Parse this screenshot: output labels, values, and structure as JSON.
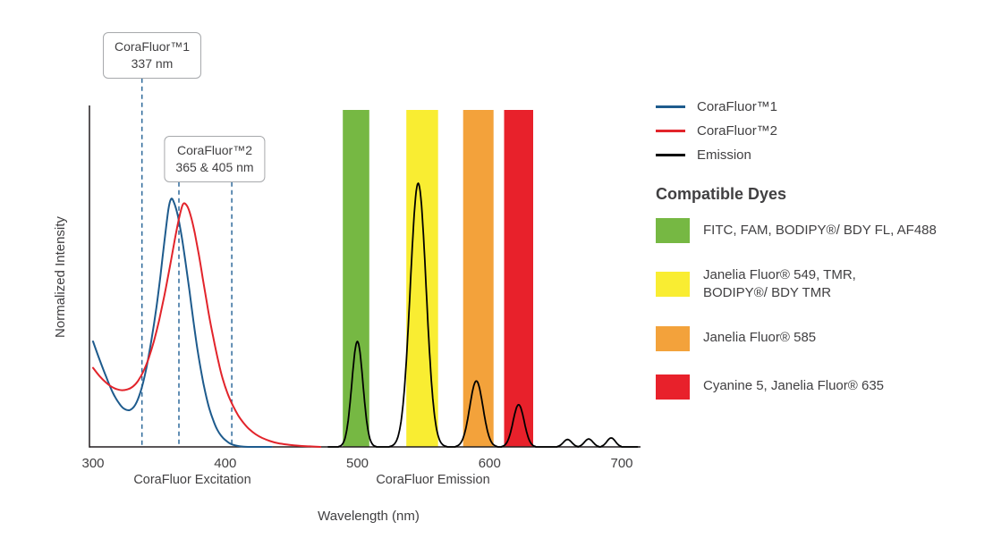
{
  "chart_data": {
    "type": "line",
    "xlabel": "Wavelength (nm)",
    "ylabel": "Normalized Intensity",
    "xlim": [
      300,
      712
    ],
    "ylim": [
      0,
      1.3
    ],
    "grid": false,
    "legend_position": "right",
    "x_ticks": [
      300,
      400,
      500,
      600,
      700
    ],
    "axis_section_labels": [
      {
        "text": "CoraFluor Excitation"
      },
      {
        "text": "CoraFluor Emission"
      }
    ],
    "colors": {
      "axis": "#231f20",
      "callout_line": "#2f6a9b"
    },
    "callouts": [
      {
        "title": "CoraFluor™1",
        "subtitle": "337 nm",
        "lines_nm": [
          337
        ]
      },
      {
        "title": "CoraFluor™2",
        "subtitle": "365 & 405 nm",
        "lines_nm": [
          365,
          405
        ]
      }
    ],
    "dye_bands": [
      {
        "dye_group": "FITC, FAM, BODIPY®/ BDY FL, AF488",
        "color": "#76b843",
        "from_nm": 489,
        "to_nm": 509
      },
      {
        "dye_group": "Janelia Fluor® 549, TMR, BODIPY®/ BDY TMR",
        "color": "#f9ed32",
        "from_nm": 537,
        "to_nm": 561
      },
      {
        "dye_group": "Janelia Fluor® 585",
        "color": "#f3a23b",
        "from_nm": 580,
        "to_nm": 603
      },
      {
        "dye_group": "Cyanine 5, Janelia Fluor® 635",
        "color": "#e8212b",
        "from_nm": 611,
        "to_nm": 633
      }
    ],
    "series": [
      {
        "name": "CoraFluor™1",
        "kind": "excitation",
        "color": "#1e5b8d",
        "points": [
          [
            300,
            0.4
          ],
          [
            305,
            0.33
          ],
          [
            310,
            0.265
          ],
          [
            315,
            0.205
          ],
          [
            320,
            0.163
          ],
          [
            324,
            0.143
          ],
          [
            328,
            0.14
          ],
          [
            332,
            0.16
          ],
          [
            336,
            0.21
          ],
          [
            340,
            0.29
          ],
          [
            344,
            0.4
          ],
          [
            348,
            0.53
          ],
          [
            351,
            0.65
          ],
          [
            354,
            0.78
          ],
          [
            357,
            0.9
          ],
          [
            359,
            0.94
          ],
          [
            361,
            0.93
          ],
          [
            364,
            0.88
          ],
          [
            367,
            0.8
          ],
          [
            370,
            0.7
          ],
          [
            373,
            0.59
          ],
          [
            376,
            0.475
          ],
          [
            379,
            0.37
          ],
          [
            382,
            0.28
          ],
          [
            385,
            0.205
          ],
          [
            388,
            0.145
          ],
          [
            391,
            0.1
          ],
          [
            394,
            0.065
          ],
          [
            397,
            0.042
          ],
          [
            400,
            0.026
          ],
          [
            404,
            0.012
          ],
          [
            408,
            0.005
          ],
          [
            414,
            0.001
          ],
          [
            422,
            0
          ],
          [
            435,
            0
          ]
        ]
      },
      {
        "name": "CoraFluor™2",
        "kind": "excitation",
        "color": "#e2242b",
        "points": [
          [
            300,
            0.3
          ],
          [
            305,
            0.268
          ],
          [
            310,
            0.243
          ],
          [
            314,
            0.228
          ],
          [
            318,
            0.219
          ],
          [
            322,
            0.215
          ],
          [
            326,
            0.218
          ],
          [
            330,
            0.228
          ],
          [
            334,
            0.25
          ],
          [
            338,
            0.285
          ],
          [
            342,
            0.335
          ],
          [
            346,
            0.4
          ],
          [
            350,
            0.48
          ],
          [
            354,
            0.575
          ],
          [
            358,
            0.68
          ],
          [
            362,
            0.79
          ],
          [
            365,
            0.865
          ],
          [
            368,
            0.92
          ],
          [
            371,
            0.915
          ],
          [
            374,
            0.875
          ],
          [
            377,
            0.81
          ],
          [
            380,
            0.73
          ],
          [
            383,
            0.64
          ],
          [
            386,
            0.55
          ],
          [
            389,
            0.465
          ],
          [
            392,
            0.39
          ],
          [
            395,
            0.32
          ],
          [
            398,
            0.26
          ],
          [
            402,
            0.2
          ],
          [
            406,
            0.155
          ],
          [
            410,
            0.118
          ],
          [
            414,
            0.09
          ],
          [
            418,
            0.068
          ],
          [
            423,
            0.048
          ],
          [
            428,
            0.034
          ],
          [
            434,
            0.022
          ],
          [
            440,
            0.014
          ],
          [
            448,
            0.008
          ],
          [
            456,
            0.004
          ],
          [
            464,
            0.002
          ],
          [
            472,
            0
          ]
        ]
      },
      {
        "name": "Emission",
        "kind": "emission",
        "color": "#000000",
        "peaks": [
          {
            "center_nm": 500,
            "height": 0.4,
            "sigma_nm": 4.2
          },
          {
            "center_nm": 546,
            "height": 1.0,
            "sigma_nm": 6.0
          },
          {
            "center_nm": 590,
            "height": 0.25,
            "sigma_nm": 5.0
          },
          {
            "center_nm": 622,
            "height": 0.16,
            "sigma_nm": 4.2
          },
          {
            "center_nm": 659,
            "height": 0.028,
            "sigma_nm": 3.2
          },
          {
            "center_nm": 675,
            "height": 0.03,
            "sigma_nm": 3.2
          },
          {
            "center_nm": 692,
            "height": 0.034,
            "sigma_nm": 3.2
          }
        ]
      }
    ]
  },
  "legend": {
    "items": [
      {
        "label": "CoraFluor™1",
        "color": "#1e5b8d"
      },
      {
        "label": "CoraFluor™2",
        "color": "#e2242b"
      },
      {
        "label": "Emission",
        "color": "#000000"
      }
    ]
  },
  "compatible_dyes": {
    "heading": "Compatible Dyes",
    "items": [
      {
        "color": "#76b843",
        "lines": [
          "FITC, FAM, BODIPY®/ BDY FL, AF488"
        ]
      },
      {
        "color": "#f9ed32",
        "lines": [
          "Janelia Fluor® 549, TMR,",
          "BODIPY®/ BDY TMR"
        ]
      },
      {
        "color": "#f3a23b",
        "lines": [
          "Janelia Fluor® 585"
        ]
      },
      {
        "color": "#e8212b",
        "lines": [
          "Cyanine 5, Janelia Fluor® 635"
        ]
      }
    ]
  }
}
